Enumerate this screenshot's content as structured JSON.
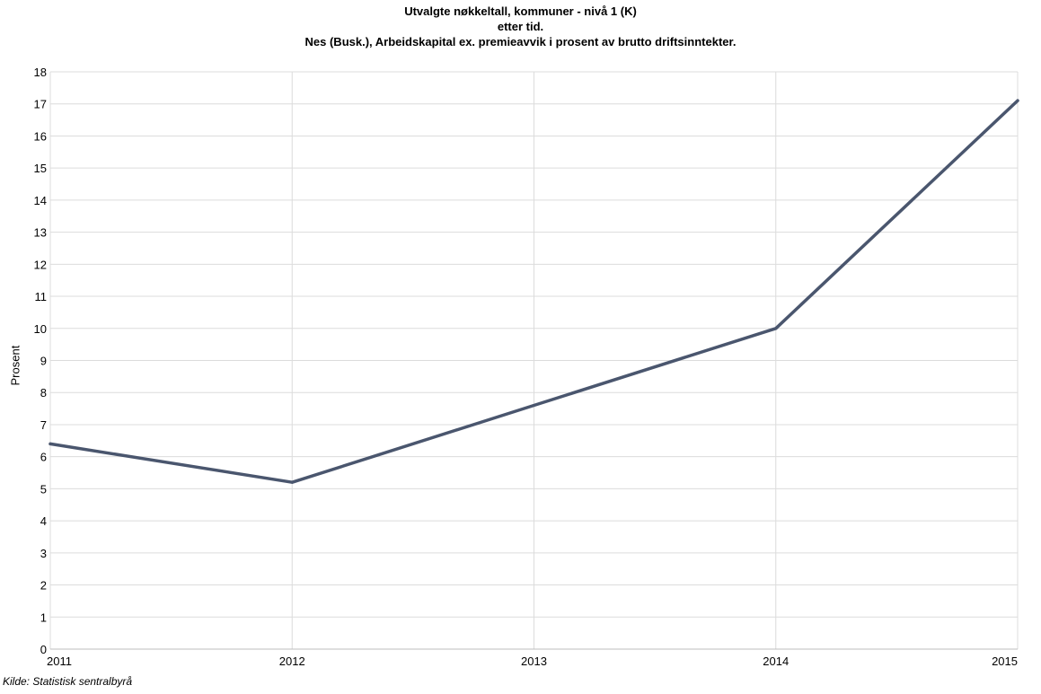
{
  "chart_data": {
    "type": "line",
    "title": [
      "Utvalgte nøkkeltall, kommuner - nivå 1 (K)",
      "etter tid.",
      "Nes (Busk.), Arbeidskapital ex. premieavvik i prosent av brutto driftsinntekter."
    ],
    "ylabel": "Prosent",
    "xlabel": "",
    "x": [
      "2011",
      "2012",
      "2013",
      "2014",
      "2015"
    ],
    "series": [
      {
        "values": [
          6.4,
          5.2,
          7.6,
          10.0,
          17.1
        ]
      }
    ],
    "ylim": [
      0,
      18
    ],
    "yticks": [
      0,
      1,
      2,
      3,
      4,
      5,
      6,
      7,
      8,
      9,
      10,
      11,
      12,
      13,
      14,
      15,
      16,
      17,
      18
    ],
    "grid": true,
    "line_color": "#4a566e",
    "grid_color": "#dcdcdc"
  },
  "source": "Kilde: Statistisk sentralbyrå"
}
